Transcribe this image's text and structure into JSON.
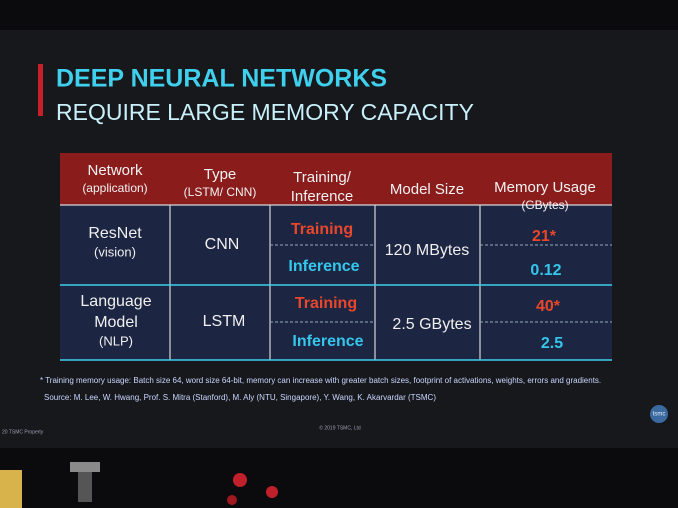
{
  "slide": {
    "title": "DEEP NEURAL NETWORKS",
    "subtitle": "REQUIRE LARGE MEMORY CAPACITY",
    "table": {
      "header": [
        [
          "Network",
          "(application)"
        ],
        [
          "Type",
          "(LSTM/ CNN)"
        ],
        [
          "Training/",
          "Inference"
        ],
        [
          "Model Size"
        ],
        [
          "Memory Usage",
          "(GBytes)"
        ]
      ],
      "rows": [
        {
          "network": [
            "ResNet",
            "(vision)"
          ],
          "type": "CNN",
          "phases": [
            "Training",
            "Inference"
          ],
          "model_size": "120 MBytes",
          "memory": [
            "21*",
            "0.12"
          ]
        },
        {
          "network": [
            "Language",
            "Model",
            "(NLP)"
          ],
          "type": "LSTM",
          "phases": [
            "Training",
            "Inference"
          ],
          "model_size": "2.5 GBytes",
          "memory": [
            "40*",
            "2.5"
          ]
        }
      ]
    },
    "footnote": "* Training memory usage: Batch size 64, word size 64-bit, memory can increase with greater batch sizes, footprint of activations, weights, errors and gradients.",
    "source": "Source: M. Lee, W. Hwang, Prof. S. Mitra (Stanford), M. Aly (NTU, Singapore), Y. Wang, K. Akarvardar (TSMC)",
    "footer_left": "20   TSMC Property",
    "footer_center": "© 2019 TSMC, Ltd",
    "logo": "tsmc"
  }
}
